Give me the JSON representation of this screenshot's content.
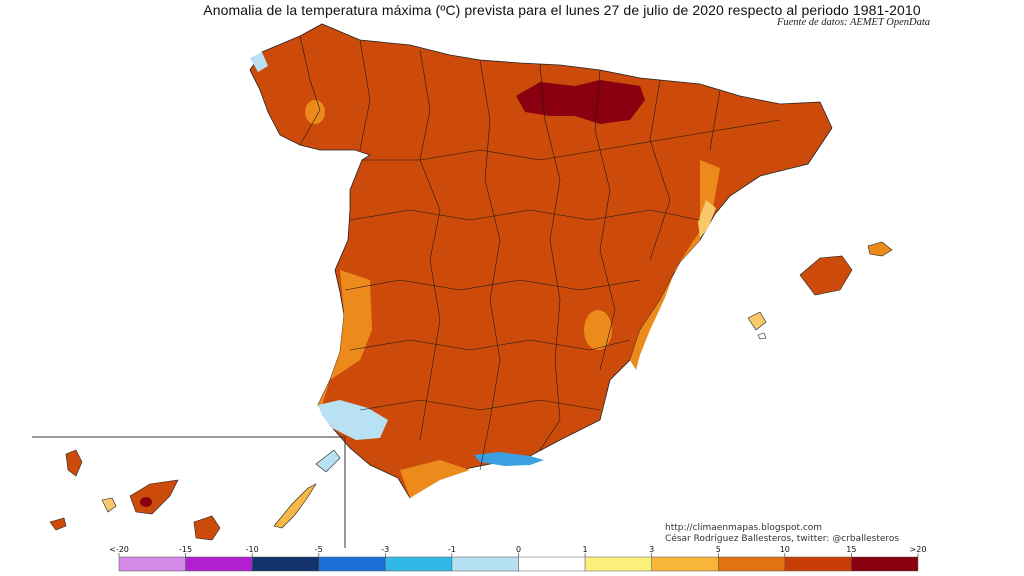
{
  "title": "Anomalia de la temperatura máxima (ºC) prevista para el lunes 27 de julio de 2020 respecto al periodo 1981-2010",
  "subtitle": "Fuente de datos: AEMET OpenData",
  "credits": {
    "line1": "http://climaenmapas.blogspot.com",
    "line2": "César Rodríguez Ballesteros, twitter: @crballesteros"
  },
  "legend": {
    "labels": [
      "<-20",
      "-15",
      "-10",
      "-5",
      "-3",
      "-1",
      "0",
      "1",
      "3",
      "5",
      "10",
      "15",
      ">20"
    ],
    "colors": [
      "#d68ae8",
      "#b020d0",
      "#13336c",
      "#1a6fd6",
      "#30b8e8",
      "#b6e0f4",
      "#ffffff",
      "#fdf07a",
      "#f7b53a",
      "#e27512",
      "#c83c06",
      "#8a0010",
      "#6a3000"
    ]
  },
  "colors": {
    "main": "#cc4a0a",
    "extreme": "#8b0010",
    "moderate": "#ec8a1c",
    "mild": "#f7b648",
    "cool": "#b8e2f4",
    "cold": "#3aa0e0"
  }
}
